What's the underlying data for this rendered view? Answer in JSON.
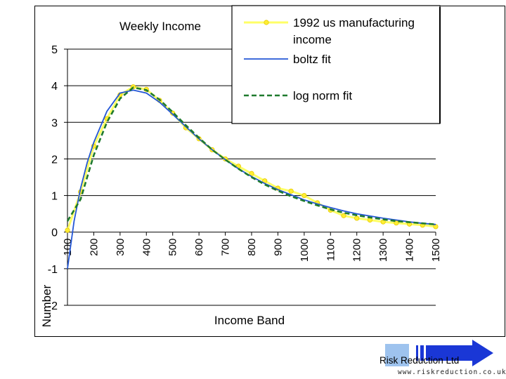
{
  "chart_data": {
    "type": "line",
    "title": "Weekly Income",
    "xlabel": "Income Band",
    "ylabel": "Number",
    "ylim": [
      -2,
      5
    ],
    "yticks": [
      5,
      4,
      3,
      2,
      1,
      0,
      -1,
      -2
    ],
    "y_tick_labels": [
      "5",
      "4",
      "3",
      "2",
      "1",
      "0",
      "-1",
      "-2"
    ],
    "xlim": [
      100,
      1500
    ],
    "x_tick_values": [
      100,
      200,
      300,
      400,
      500,
      600,
      700,
      800,
      900,
      1000,
      1100,
      1200,
      1300,
      1400,
      1500
    ],
    "x_tick_labels": [
      "100",
      "200",
      "300",
      "400",
      "500",
      "600",
      "700",
      "800",
      "900",
      "1000",
      "1100",
      "1200",
      "1300",
      "1400",
      "1500"
    ],
    "grid": "horizontal",
    "legend_position": "top-right",
    "series": [
      {
        "name": "1992 us manufacturing income",
        "style": "yellow-dotted-markers",
        "color": "#ffff66",
        "x": [
          100,
          150,
          200,
          250,
          300,
          350,
          400,
          450,
          500,
          550,
          600,
          650,
          700,
          750,
          800,
          850,
          900,
          950,
          1000,
          1050,
          1100,
          1150,
          1200,
          1250,
          1300,
          1350,
          1400,
          1450,
          1500
        ],
        "y": [
          0.05,
          1.1,
          2.35,
          3.1,
          3.75,
          3.97,
          3.9,
          3.6,
          3.25,
          2.85,
          2.55,
          2.25,
          2.0,
          1.8,
          1.6,
          1.4,
          1.2,
          1.12,
          1.0,
          0.8,
          0.6,
          0.45,
          0.38,
          0.33,
          0.28,
          0.25,
          0.22,
          0.19,
          0.15
        ]
      },
      {
        "name": "boltz fit",
        "style": "solid",
        "color": "#2457d6",
        "x": [
          100,
          125,
          150,
          175,
          200,
          250,
          300,
          350,
          400,
          450,
          500,
          550,
          600,
          650,
          700,
          750,
          800,
          850,
          900,
          950,
          1000,
          1050,
          1100,
          1150,
          1200,
          1250,
          1300,
          1350,
          1400,
          1450,
          1500
        ],
        "y": [
          -1.0,
          0.3,
          1.2,
          1.9,
          2.45,
          3.3,
          3.8,
          3.88,
          3.8,
          3.55,
          3.22,
          2.88,
          2.55,
          2.25,
          1.98,
          1.73,
          1.52,
          1.33,
          1.16,
          1.02,
          0.88,
          0.77,
          0.67,
          0.58,
          0.5,
          0.44,
          0.38,
          0.33,
          0.28,
          0.24,
          0.21
        ]
      },
      {
        "name": "log norm fit",
        "style": "dashed",
        "color": "#1f7a2e",
        "x": [
          100,
          150,
          200,
          250,
          300,
          350,
          400,
          450,
          500,
          550,
          600,
          650,
          700,
          750,
          800,
          850,
          900,
          950,
          1000,
          1050,
          1100,
          1150,
          1200,
          1250,
          1300,
          1350,
          1400,
          1450,
          1500
        ],
        "y": [
          0.3,
          0.9,
          2.1,
          3.0,
          3.65,
          3.95,
          3.88,
          3.62,
          3.28,
          2.92,
          2.58,
          2.25,
          1.98,
          1.73,
          1.5,
          1.3,
          1.13,
          0.98,
          0.85,
          0.73,
          0.62,
          0.53,
          0.46,
          0.4,
          0.35,
          0.3,
          0.27,
          0.24,
          0.21
        ]
      }
    ]
  },
  "logo": {
    "company": "Risk Reduction Ltd",
    "url": "www.riskreduction.co.uk",
    "box_color": "#9ec3ee",
    "arrow_color": "#1a37d6"
  }
}
